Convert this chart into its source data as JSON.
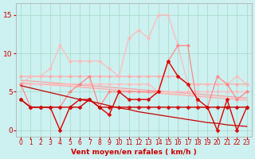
{
  "background_color": "#cdf0f0",
  "grid_color": "#aaddcc",
  "xlabel": "Vent moyen/en rafales ( km/h )",
  "xlabel_color": "#cc0000",
  "xlabel_fontsize": 6.5,
  "tick_color": "#cc0000",
  "tick_fontsize": 5.5,
  "ylim": [
    -0.8,
    16.5
  ],
  "xlim": [
    -0.5,
    23.5
  ],
  "yticks": [
    0,
    5,
    10,
    15
  ],
  "xticks": [
    0,
    1,
    2,
    3,
    4,
    5,
    6,
    7,
    8,
    9,
    10,
    11,
    12,
    13,
    14,
    15,
    16,
    17,
    18,
    19,
    20,
    21,
    22,
    23
  ],
  "series": [
    {
      "y": [
        7,
        7,
        7,
        7,
        7,
        7,
        7,
        7,
        7,
        7,
        7,
        7,
        7,
        7,
        7,
        7,
        7,
        6,
        6,
        6,
        6,
        6,
        6,
        6
      ],
      "color": "#ffaaaa",
      "linewidth": 0.9,
      "markersize": 2.2,
      "marker": "D",
      "zorder": 2
    },
    {
      "y": [
        6,
        6,
        6,
        6,
        6,
        6,
        6,
        6,
        6,
        6,
        6,
        6,
        6,
        6,
        5,
        5,
        5,
        5,
        5,
        5,
        5,
        5,
        5,
        5
      ],
      "color": "#ffbbbb",
      "linewidth": 0.9,
      "markersize": 2.2,
      "marker": "D",
      "zorder": 2
    },
    {
      "y": [
        6,
        6,
        6,
        6,
        6,
        5.8,
        5.7,
        5.6,
        5.5,
        5.4,
        5.3,
        5.2,
        5.1,
        5.0,
        4.9,
        4.8,
        4.7,
        4.6,
        4.5,
        4.4,
        4.3,
        4.2,
        4.1,
        4.0
      ],
      "color": "#ffcccc",
      "linewidth": 0.8,
      "markersize": 0,
      "marker": null,
      "zorder": 1
    },
    {
      "y": [
        6.2,
        6.1,
        6.0,
        5.9,
        5.8,
        5.7,
        5.6,
        5.5,
        5.4,
        5.3,
        5.2,
        5.1,
        5.0,
        4.9,
        4.8,
        4.7,
        4.6,
        4.5,
        4.4,
        4.3,
        4.2,
        4.1,
        4.0,
        3.9
      ],
      "color": "#ffaaaa",
      "linewidth": 0.8,
      "markersize": 0,
      "marker": null,
      "zorder": 1
    },
    {
      "y": [
        6.5,
        6.4,
        6.3,
        6.2,
        6.1,
        6.0,
        5.9,
        5.8,
        5.7,
        5.6,
        5.5,
        5.4,
        5.3,
        5.2,
        5.1,
        5.0,
        4.9,
        4.8,
        4.7,
        4.6,
        4.5,
        4.4,
        4.3,
        4.2
      ],
      "color": "#ff9999",
      "linewidth": 0.8,
      "markersize": 0,
      "marker": null,
      "zorder": 1
    },
    {
      "y": [
        6,
        7,
        7,
        8,
        11,
        9,
        9,
        9,
        9,
        8,
        7,
        12,
        13,
        12,
        15,
        15,
        11,
        6,
        6,
        6,
        6,
        6,
        7,
        6
      ],
      "color": "#ffbbbb",
      "linewidth": 0.9,
      "markersize": 2.2,
      "marker": "D",
      "zorder": 2
    },
    {
      "comment": "medium pink - mid series: 6,3,3,3,3,5,6,7,3,5,5,5,5,5,5,9,11,11...",
      "y": [
        6,
        3,
        3,
        3,
        3,
        5,
        6,
        7,
        3,
        5,
        5,
        5,
        5,
        5,
        5,
        9,
        11,
        11,
        3,
        3,
        7,
        6,
        4,
        5
      ],
      "color": "#ff8888",
      "linewidth": 0.9,
      "markersize": 2.2,
      "marker": "D",
      "zorder": 2
    },
    {
      "y": [
        4,
        3,
        3,
        3,
        0,
        3,
        4,
        4,
        3,
        2,
        5,
        4,
        4,
        4,
        5,
        9,
        7,
        6,
        4,
        3,
        0,
        4,
        0,
        3
      ],
      "color": "#dd0000",
      "linewidth": 1.0,
      "markersize": 2.5,
      "marker": "D",
      "zorder": 3
    },
    {
      "y": [
        5.8,
        5.5,
        5.2,
        4.9,
        4.6,
        4.3,
        4.0,
        3.8,
        3.5,
        3.2,
        2.9,
        2.7,
        2.4,
        2.2,
        2.0,
        1.8,
        1.6,
        1.4,
        1.2,
        1.0,
        0.9,
        0.7,
        0.6,
        0.5
      ],
      "color": "#cc0000",
      "linewidth": 0.9,
      "markersize": 0,
      "marker": null,
      "zorder": 3
    },
    {
      "y": [
        4,
        3,
        3,
        3,
        3,
        3,
        3,
        4,
        3,
        3,
        3,
        3,
        3,
        3,
        3,
        3,
        3,
        3,
        3,
        3,
        3,
        3,
        3,
        3
      ],
      "color": "#cc0000",
      "linewidth": 1.0,
      "markersize": 2.5,
      "marker": "D",
      "zorder": 3
    }
  ]
}
